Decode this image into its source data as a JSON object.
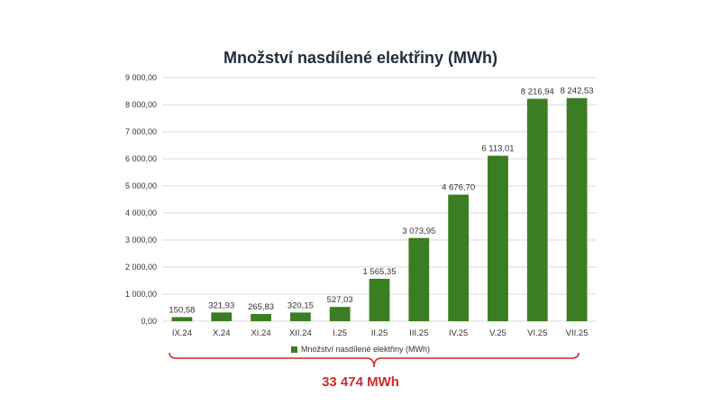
{
  "chart_data": {
    "type": "bar",
    "title": "Množství nasdílené elektřiny (MWh)",
    "categories": [
      "IX.24",
      "X.24",
      "XI.24",
      "XII.24",
      "I.25",
      "II.25",
      "III.25",
      "IV.25",
      "V.25",
      "VI.25",
      "VII.25"
    ],
    "series": [
      {
        "name": "Množství nasdílené elektřiny (MWh)",
        "values": [
          150.58,
          321.93,
          265.83,
          320.15,
          527.03,
          1565.35,
          3073.95,
          4676.7,
          6113.01,
          8216.94,
          8242.53
        ],
        "data_labels": [
          "150,58",
          "321,93",
          "265,83",
          "320,15",
          "527,03",
          "1 565,35",
          "3 073,95",
          "4 676,70",
          "6 113,01",
          "8 216,94",
          "8 242,53"
        ]
      }
    ],
    "ylim": [
      0,
      9000
    ],
    "yticks": [
      0,
      1000,
      2000,
      3000,
      4000,
      5000,
      6000,
      7000,
      8000,
      9000
    ],
    "ytick_labels": [
      "0,00",
      "1 000,00",
      "2 000,00",
      "3 000,00",
      "4 000,00",
      "5 000,00",
      "6 000,00",
      "7 000,00",
      "8 000,00",
      "9 000,00"
    ],
    "grid": true,
    "legend_position": "bottom",
    "annotation": "33 474 MWh"
  },
  "colors": {
    "bar": "#3a7d22",
    "grid": "#d9d9d9",
    "brace": "#d12a2a",
    "total_text": "#d12a2a"
  }
}
